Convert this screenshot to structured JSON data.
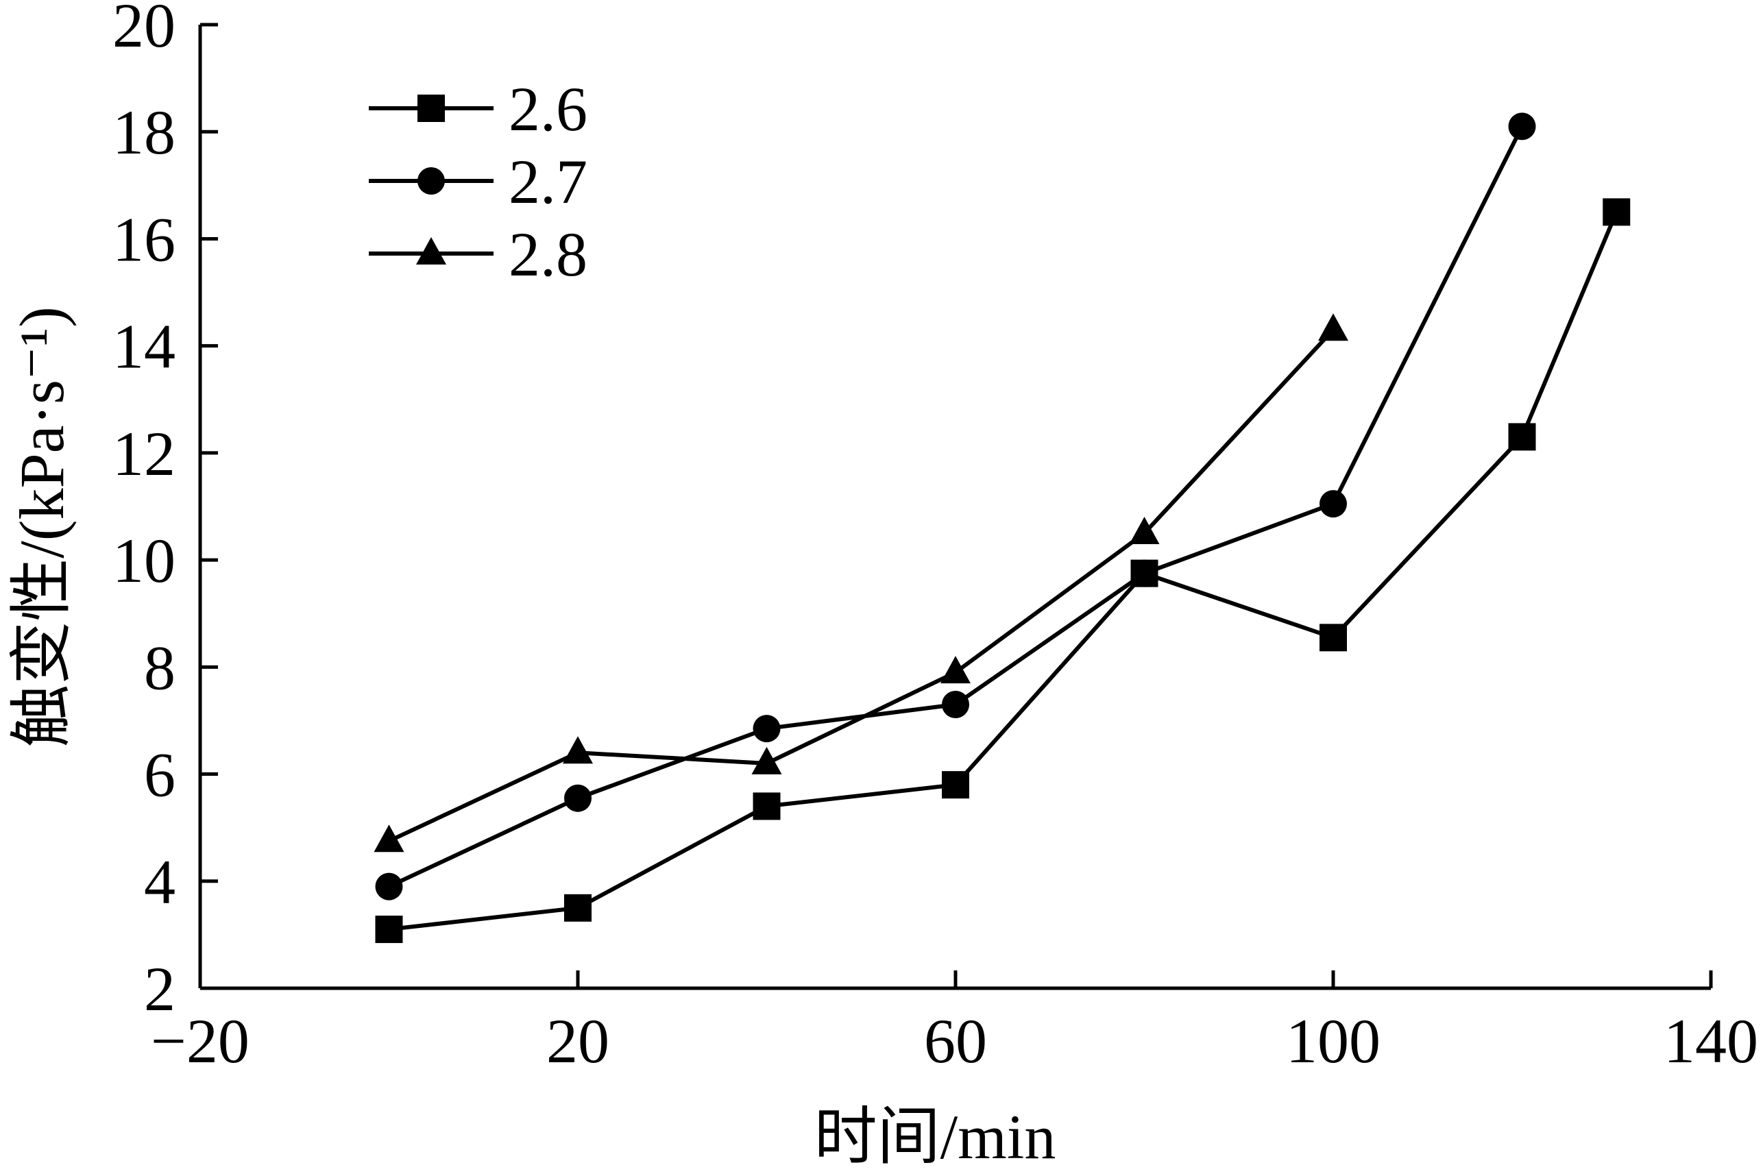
{
  "chart_data": {
    "type": "line",
    "title": "",
    "xlabel": "时间/min",
    "ylabel": "触变性/(kPa·s⁻¹)",
    "xlim": [
      -20,
      140
    ],
    "ylim": [
      2,
      20
    ],
    "x_ticks": [
      -20,
      20,
      60,
      100,
      140
    ],
    "x_tick_labels": [
      "−20",
      "20",
      "60",
      "100",
      "140"
    ],
    "y_ticks": [
      2,
      4,
      6,
      8,
      10,
      12,
      14,
      16,
      18,
      20
    ],
    "y_tick_labels": [
      "2",
      "4",
      "6",
      "8",
      "10",
      "12",
      "14",
      "16",
      "18",
      "20"
    ],
    "grid": false,
    "legend_position": "top-left",
    "series": [
      {
        "name": "2.6",
        "marker": "square",
        "x": [
          0,
          20,
          40,
          60,
          80,
          100,
          120,
          130
        ],
        "y": [
          3.1,
          3.5,
          5.4,
          5.8,
          9.75,
          8.55,
          12.3,
          16.5
        ]
      },
      {
        "name": "2.7",
        "marker": "circle",
        "x": [
          0,
          20,
          40,
          60,
          80,
          100,
          120
        ],
        "y": [
          3.9,
          5.55,
          6.85,
          7.3,
          9.75,
          11.05,
          18.1
        ]
      },
      {
        "name": "2.8",
        "marker": "triangle",
        "x": [
          0,
          20,
          40,
          60,
          80,
          100
        ],
        "y": [
          4.75,
          6.4,
          6.2,
          7.9,
          10.5,
          14.3
        ]
      }
    ]
  }
}
